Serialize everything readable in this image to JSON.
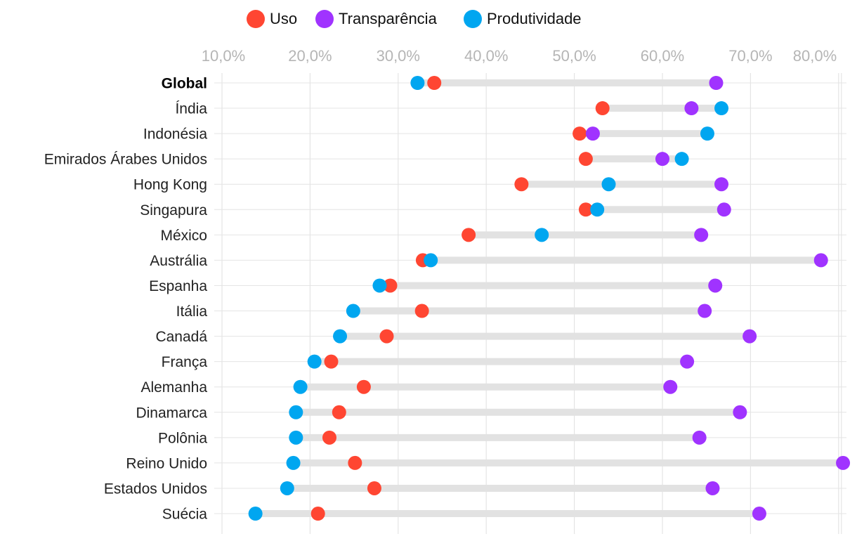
{
  "legend": [
    {
      "key": "uso",
      "label": "Uso",
      "color": "#ff4632"
    },
    {
      "key": "transparencia",
      "label": "Transparência",
      "color": "#a033ff"
    },
    {
      "key": "produtividade",
      "label": "Produtividade",
      "color": "#00a6f0"
    }
  ],
  "colors": {
    "range_bar": "#e2e2e2",
    "grid": "#e4e4e4",
    "tick": "#b5b5b5"
  },
  "chart_data": {
    "type": "dot-range",
    "x_ticks": [
      "10,0%",
      "20,0%",
      "30,0%",
      "40,0%",
      "50,0%",
      "60,0%",
      "70,0%",
      "80,0%"
    ],
    "x_tick_values": [
      10,
      20,
      30,
      40,
      50,
      60,
      70,
      80
    ],
    "xlim": [
      10,
      80
    ],
    "grid": true,
    "legend_position": "top-center",
    "categories": [
      "Global",
      "Índia",
      "Indonésia",
      "Emirados Árabes Unidos",
      "Hong Kong",
      "Singapura",
      "México",
      "Austrália",
      "Espanha",
      "Itália",
      "Canadá",
      "França",
      "Alemanha",
      "Dinamarca",
      "Polônia",
      "Reino Unido",
      "Estados Unidos",
      "Suécia"
    ],
    "bold_categories": [
      "Global"
    ],
    "series": [
      {
        "name": "Uso",
        "values": [
          34.1,
          53.2,
          50.6,
          51.3,
          44.0,
          51.3,
          38.0,
          32.8,
          29.1,
          32.7,
          28.7,
          22.4,
          26.1,
          23.3,
          22.2,
          25.1,
          27.3,
          20.9
        ]
      },
      {
        "name": "Transparência",
        "values": [
          66.1,
          63.3,
          52.1,
          60.0,
          66.7,
          67.0,
          64.4,
          78.0,
          66.0,
          64.8,
          69.9,
          62.8,
          60.9,
          68.8,
          64.2,
          80.5,
          65.7,
          71.0
        ]
      },
      {
        "name": "Produtividade",
        "values": [
          32.2,
          66.7,
          65.1,
          62.2,
          53.9,
          52.6,
          46.3,
          33.7,
          27.9,
          24.9,
          23.4,
          20.5,
          18.9,
          18.4,
          18.4,
          18.1,
          17.4,
          13.8
        ]
      }
    ]
  }
}
